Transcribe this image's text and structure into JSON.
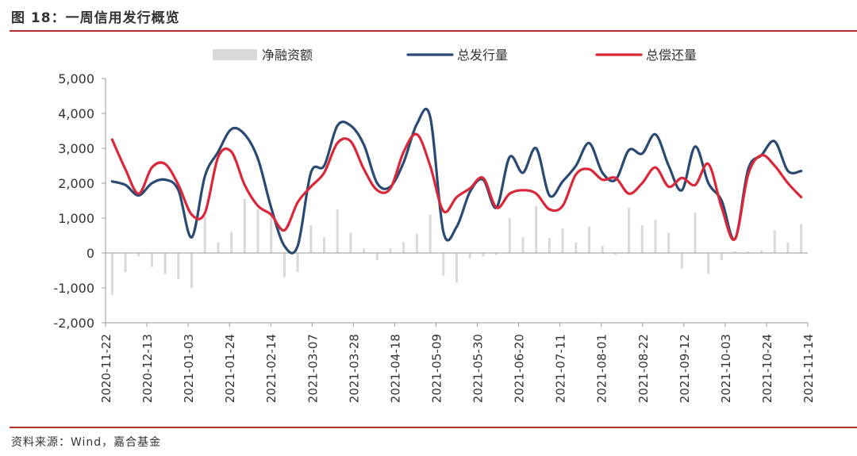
{
  "figure": {
    "title": "图 18：一周信用发行概览",
    "source": "资料来源：Wind，嘉合基金"
  },
  "chart_data": {
    "type": "bar+line",
    "ylim": [
      -2000,
      5000
    ],
    "yticks": [
      -2000,
      -1000,
      0,
      1000,
      2000,
      3000,
      4000,
      5000
    ],
    "ytick_labels": [
      "-2,000",
      "-1,000",
      "0",
      "1,000",
      "2,000",
      "3,000",
      "4,000",
      "5,000"
    ],
    "x_tick_labels": [
      "2020-11-22",
      "2020-12-13",
      "2021-01-03",
      "2021-01-24",
      "2021-02-14",
      "2021-03-07",
      "2021-03-28",
      "2021-04-18",
      "2021-05-09",
      "2021-05-30",
      "2021-06-20",
      "2021-07-11",
      "2021-08-01",
      "2021-08-22",
      "2021-09-12",
      "2021-10-03",
      "2021-10-24",
      "2021-11-14"
    ],
    "legend_position": "top",
    "grid": false,
    "colors": {
      "net": "#d9d9d9",
      "issuance": "#2b4a73",
      "repayment": "#d8283a"
    },
    "series": [
      {
        "name": "净融资额",
        "kind": "bar",
        "values": [
          -1200,
          -550,
          -100,
          -400,
          -600,
          -750,
          -1000,
          1050,
          300,
          600,
          1550,
          1250,
          1100,
          -700,
          -550,
          800,
          450,
          1250,
          580,
          130,
          -200,
          130,
          320,
          550,
          1100,
          -650,
          -850,
          -150,
          -100,
          -50,
          1000,
          450,
          1350,
          430,
          700,
          300,
          750,
          200,
          -50,
          1300,
          800,
          950,
          580,
          -450,
          1150,
          -600,
          -200,
          50,
          50,
          80,
          650,
          300,
          830
        ]
      },
      {
        "name": "总发行量",
        "kind": "line",
        "values": [
          2050,
          1950,
          1650,
          2000,
          2100,
          1800,
          450,
          2200,
          2900,
          3550,
          3400,
          2700,
          1300,
          200,
          200,
          2300,
          2500,
          3650,
          3650,
          3100,
          2000,
          1900,
          2600,
          3700,
          3900,
          600,
          750,
          1750,
          2100,
          1300,
          2750,
          2300,
          3000,
          1650,
          2050,
          2500,
          3150,
          2300,
          2100,
          2950,
          2850,
          3400,
          2500,
          1800,
          3050,
          2000,
          1500,
          400,
          2400,
          2800,
          3200,
          2350,
          2350
        ]
      },
      {
        "name": "总偿还量",
        "kind": "line",
        "values": [
          3250,
          2400,
          1700,
          2450,
          2550,
          1950,
          1100,
          1150,
          2750,
          2900,
          1950,
          1350,
          1100,
          650,
          1450,
          1900,
          2300,
          3150,
          3200,
          2400,
          1800,
          1850,
          2900,
          3400,
          2500,
          1200,
          1600,
          1850,
          2150,
          1300,
          1700,
          1800,
          1700,
          1250,
          1350,
          2250,
          2400,
          2100,
          2150,
          1700,
          2000,
          2450,
          1900,
          2150,
          1950,
          2550,
          1300,
          400,
          2250,
          2800,
          2500,
          2000,
          1600
        ]
      }
    ]
  }
}
